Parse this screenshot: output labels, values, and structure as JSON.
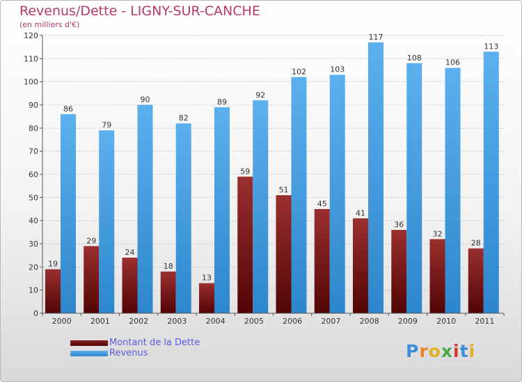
{
  "title": "Revenus/Dette - LIGNY-SUR-CANCHE",
  "subtitle": "(en milliers d'€)",
  "logo": {
    "letters": [
      "P",
      "r",
      "o",
      "x",
      "i",
      "t",
      "i"
    ],
    "colors": [
      "#3a8fd8",
      "#e8831e",
      "#e0b020",
      "#4ba84a",
      "#d8312f",
      "#3a8fd8",
      "#e0b020"
    ]
  },
  "chart_data": {
    "type": "bar",
    "title": "Revenus/Dette - LIGNY-SUR-CANCHE",
    "subtitle": "(en milliers d'€)",
    "xlabel": "",
    "ylabel": "",
    "ylim": [
      0,
      120
    ],
    "yticks": [
      "0",
      "10",
      "20",
      "30",
      "40",
      "50",
      "60",
      "70",
      "80",
      "90",
      "100",
      "110",
      "120"
    ],
    "grid": true,
    "legend_position": "bottom-left",
    "categories": [
      "2000",
      "2001",
      "2002",
      "2003",
      "2004",
      "2005",
      "2006",
      "2007",
      "2008",
      "2009",
      "2010",
      "2011"
    ],
    "series": [
      {
        "name": "Montant de la Dette",
        "color": "#7a1414",
        "values": [
          19,
          29,
          24,
          18,
          13,
          59,
          51,
          45,
          41,
          36,
          32,
          28
        ]
      },
      {
        "name": "Revenus",
        "color": "#3d9ce3",
        "values": [
          86,
          79,
          90,
          82,
          89,
          92,
          102,
          103,
          117,
          108,
          106,
          113
        ]
      }
    ]
  }
}
